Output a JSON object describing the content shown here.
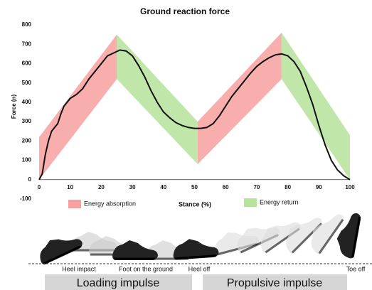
{
  "chart_data": {
    "type": "line",
    "title": "Ground reaction force",
    "y_label": "Force (n)",
    "x_label": "Stance (%)",
    "ylim": [
      -100,
      800
    ],
    "yticks": [
      800,
      700,
      600,
      500,
      400,
      300,
      200,
      100,
      0,
      -100
    ],
    "xlim": [
      0,
      100
    ],
    "xticks": [
      0,
      10,
      20,
      30,
      40,
      50,
      60,
      70,
      80,
      90,
      100
    ],
    "line": {
      "color": "#111111",
      "x": [
        0,
        1,
        2,
        3,
        4,
        5,
        6,
        7,
        8,
        10,
        12,
        14,
        16,
        18,
        20,
        22,
        24,
        26,
        28,
        30,
        32,
        34,
        36,
        38,
        40,
        42,
        44,
        46,
        48,
        50,
        52,
        54,
        56,
        58,
        60,
        62,
        64,
        66,
        68,
        70,
        72,
        74,
        76,
        78,
        80,
        82,
        84,
        86,
        88,
        90,
        92,
        94,
        96,
        98,
        100
      ],
      "values": [
        0,
        30,
        130,
        200,
        250,
        270,
        290,
        340,
        380,
        420,
        440,
        470,
        520,
        560,
        600,
        640,
        655,
        670,
        665,
        640,
        590,
        530,
        460,
        400,
        350,
        320,
        295,
        280,
        270,
        265,
        265,
        270,
        290,
        330,
        380,
        430,
        470,
        510,
        550,
        585,
        610,
        630,
        645,
        650,
        640,
        610,
        560,
        480,
        390,
        280,
        180,
        100,
        50,
        20,
        0
      ]
    },
    "series": [
      {
        "name": "Energy absorption",
        "color": "#f8a0a0",
        "regions": [
          {
            "x": [
              0,
              25
            ],
            "upper": [
              220,
              750
            ],
            "lower": [
              0,
              520
            ]
          },
          {
            "x": [
              51,
              78
            ],
            "upper": [
              300,
              760
            ],
            "lower": [
              80,
              520
            ]
          }
        ]
      },
      {
        "name": "Energy return",
        "color": "#b6e29a",
        "regions": [
          {
            "x": [
              25,
              51
            ],
            "upper": [
              750,
              300
            ],
            "lower": [
              520,
              80
            ]
          },
          {
            "x": [
              78,
              100
            ],
            "upper": [
              760,
              230
            ],
            "lower": [
              520,
              0
            ]
          }
        ]
      }
    ],
    "phases": [
      "Heel impact",
      "Foot on the ground",
      "Heel off",
      "Toe off"
    ],
    "impulses": [
      "Loading impulse",
      "Propulsive impulse"
    ]
  }
}
